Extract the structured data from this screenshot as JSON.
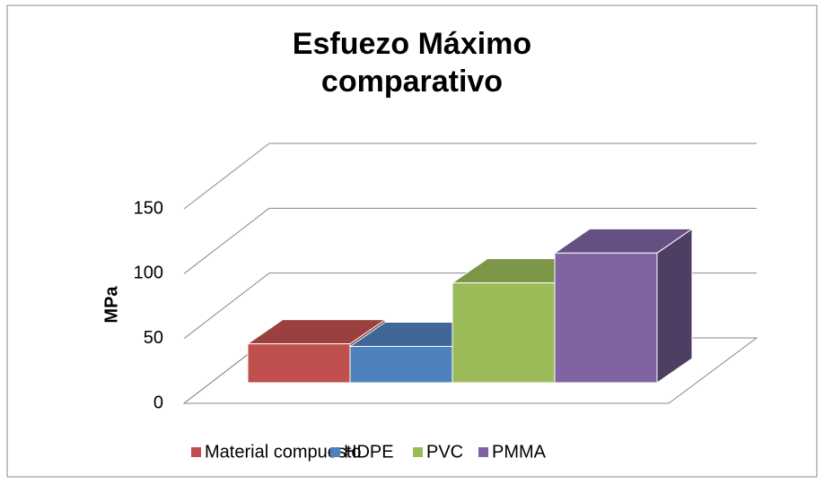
{
  "chart_data": {
    "type": "bar3d",
    "title": "Esfuezo Máximo comparativo",
    "ylabel": "MPa",
    "series": [
      {
        "name": "Material compuesto",
        "color": "#c0504d",
        "values": [
          30
        ]
      },
      {
        "name": "HDPE",
        "color": "#4f81bd",
        "values": [
          28
        ]
      },
      {
        "name": "PVC",
        "color": "#9bbb59",
        "values": [
          77
        ]
      },
      {
        "name": "PMMA",
        "color": "#8064a2",
        "values": [
          100
        ]
      }
    ],
    "ylim": [
      0,
      150
    ],
    "yticks": [
      0,
      50,
      100,
      150
    ],
    "grid": true,
    "legend": "bottom"
  }
}
